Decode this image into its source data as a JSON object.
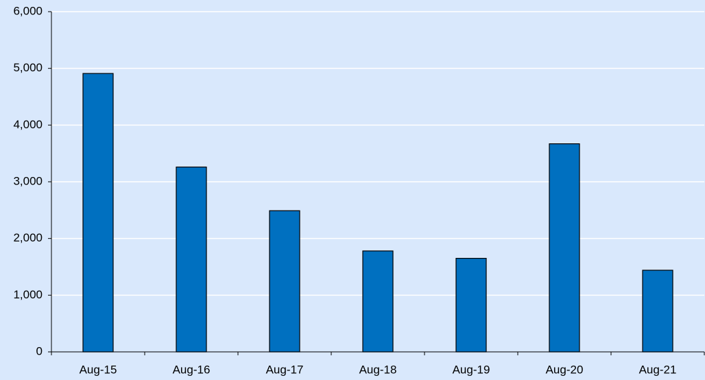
{
  "chart_data": {
    "type": "bar",
    "categories": [
      "Aug-15",
      "Aug-16",
      "Aug-17",
      "Aug-18",
      "Aug-19",
      "Aug-20",
      "Aug-21"
    ],
    "values": [
      4910,
      3260,
      2490,
      1780,
      1650,
      3670,
      1440
    ],
    "color": "#0070c0",
    "ylim": [
      0,
      6000
    ],
    "yticks": [
      0,
      {
        "value": 1000,
        "label": "1,000"
      },
      {
        "value": 2000,
        "label": "2,000"
      },
      {
        "value": 3000,
        "label": "3,000"
      },
      {
        "value": 4000,
        "label": "4,000"
      },
      {
        "value": 5000,
        "label": "5,000"
      },
      {
        "value": 6000,
        "label": "6,000"
      }
    ],
    "grid": true
  }
}
